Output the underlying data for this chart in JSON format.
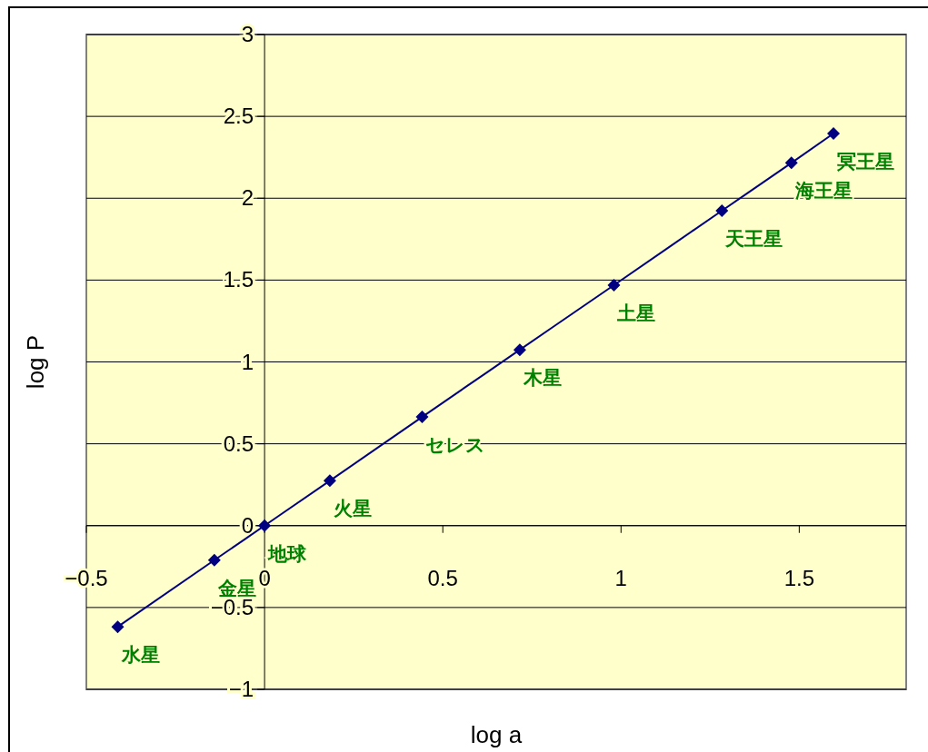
{
  "chart_data": {
    "type": "line",
    "xlabel": "log a",
    "ylabel": "log P",
    "xlim": [
      -0.5,
      1.8
    ],
    "ylim": [
      -1,
      3
    ],
    "xticks": [
      {
        "value": -0.5,
        "label": "−0.5"
      },
      0,
      0.5,
      1,
      1.5
    ],
    "yticks": [
      {
        "value": -1,
        "label": "−1"
      },
      {
        "value": -0.5,
        "label": "−0.5"
      },
      0,
      0.5,
      1,
      1.5,
      2,
      2.5,
      3
    ],
    "grid": "y",
    "marker": "diamond",
    "line_style": "solid",
    "x": [
      -0.412,
      -0.141,
      0,
      0.183,
      0.442,
      0.716,
      0.98,
      1.283,
      1.478,
      1.596
    ],
    "series": [
      {
        "color": "#000080",
        "values": [
          -0.618,
          -0.211,
          0,
          0.274,
          0.664,
          1.074,
          1.469,
          1.924,
          2.216,
          2.395
        ]
      }
    ],
    "annotations": [
      {
        "text": "水星",
        "x": -0.412,
        "y": -0.618
      },
      {
        "text": "金星",
        "x": -0.141,
        "y": -0.211
      },
      {
        "text": "地球",
        "x": 0,
        "y": 0
      },
      {
        "text": "火星",
        "x": 0.183,
        "y": 0.274
      },
      {
        "text": "セレス",
        "x": 0.442,
        "y": 0.664
      },
      {
        "text": "木星",
        "x": 0.716,
        "y": 1.074
      },
      {
        "text": "土星",
        "x": 0.98,
        "y": 1.469
      },
      {
        "text": "天王星",
        "x": 1.283,
        "y": 1.924
      },
      {
        "text": "海王星",
        "x": 1.478,
        "y": 2.216
      },
      {
        "text": "冥王星",
        "x": 1.596,
        "y": 2.395
      }
    ]
  }
}
